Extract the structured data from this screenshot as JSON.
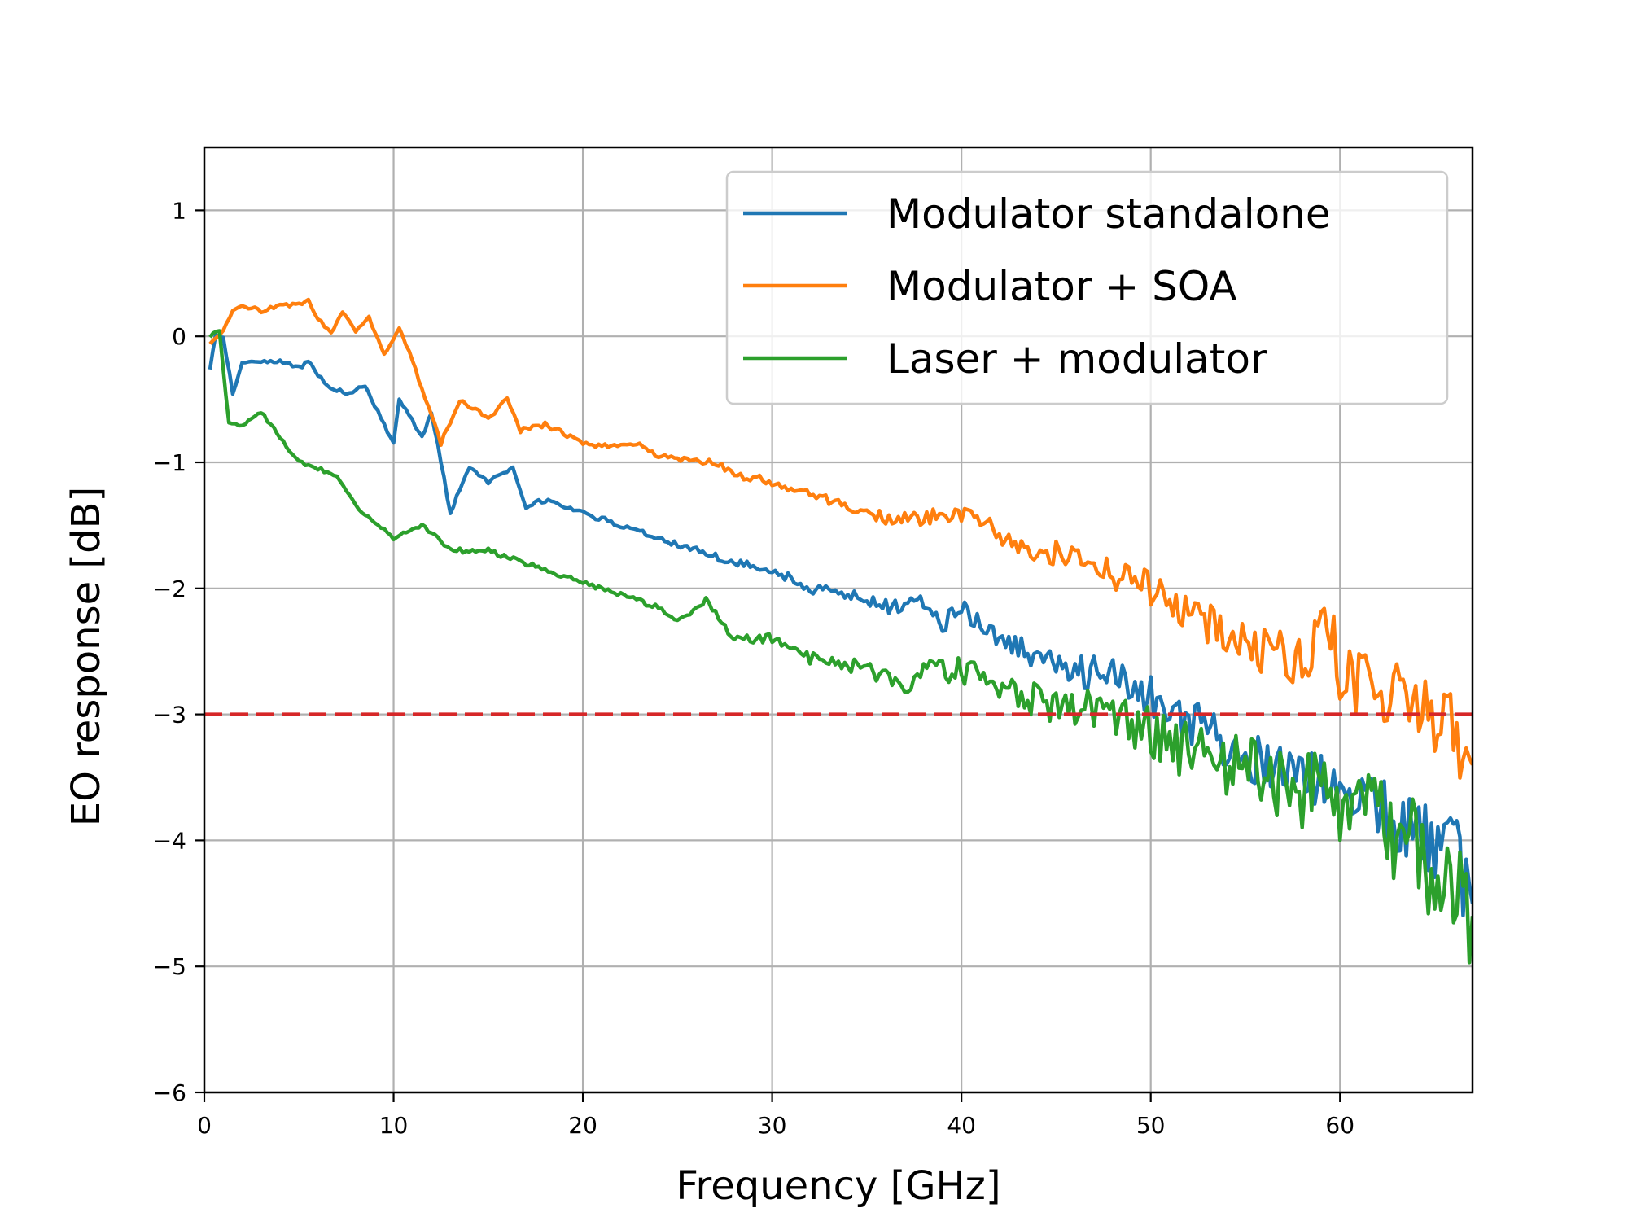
{
  "chart_data": {
    "type": "line",
    "title": "",
    "xlabel": "Frequency [GHz]",
    "ylabel": "EO response [dB]",
    "xlim": [
      0,
      67
    ],
    "ylim": [
      -6,
      1.5
    ],
    "xticks": [
      0,
      10,
      20,
      30,
      40,
      50,
      60
    ],
    "xtick_labels": [
      "0",
      "10",
      "20",
      "30",
      "40",
      "50",
      "60"
    ],
    "yticks": [
      1,
      0,
      -1,
      -2,
      -3,
      -4,
      -5,
      -6
    ],
    "ytick_labels": [
      "1",
      "0",
      "−1",
      "−2",
      "−3",
      "−4",
      "−5",
      "−6"
    ],
    "grid": true,
    "legend_position": "top-right",
    "series": [
      {
        "name": "Modulator standalone",
        "color": "#1f77b4",
        "x": [
          0.3,
          0.6,
          1,
          1.5,
          2,
          3,
          4,
          5,
          5.5,
          6.5,
          7.5,
          8.5,
          9,
          10,
          10.3,
          11.5,
          12,
          13,
          14,
          15,
          16.3,
          17,
          18,
          20,
          22,
          24,
          26,
          28,
          30,
          32,
          34,
          36,
          38,
          39,
          40,
          42,
          44,
          46,
          48,
          50,
          52,
          54,
          56,
          58,
          60,
          62,
          64,
          66,
          67
        ],
        "y": [
          -0.25,
          0.0,
          0.0,
          -0.45,
          -0.2,
          -0.2,
          -0.2,
          -0.25,
          -0.2,
          -0.4,
          -0.45,
          -0.4,
          -0.55,
          -0.85,
          -0.5,
          -0.8,
          -0.6,
          -1.4,
          -1.05,
          -1.15,
          -1.05,
          -1.35,
          -1.3,
          -1.4,
          -1.5,
          -1.6,
          -1.7,
          -1.8,
          -1.85,
          -2.0,
          -2.05,
          -2.15,
          -2.1,
          -2.3,
          -2.15,
          -2.4,
          -2.55,
          -2.65,
          -2.7,
          -2.85,
          -3.05,
          -3.25,
          -3.4,
          -3.55,
          -3.6,
          -3.7,
          -3.9,
          -4.05,
          -4.5
        ]
      },
      {
        "name": "Modulator + SOA",
        "color": "#ff7f0e",
        "x": [
          0.3,
          1,
          1.5,
          2,
          3,
          4,
          5,
          5.5,
          6,
          6.7,
          7.3,
          8,
          8.7,
          9.5,
          10.3,
          11,
          12.5,
          13.5,
          14.5,
          15,
          16,
          16.7,
          18,
          20,
          22,
          23,
          24,
          26,
          27,
          28,
          30,
          32,
          34,
          36,
          38,
          40,
          41,
          42,
          44,
          46,
          48,
          50,
          52,
          54,
          56,
          58,
          59.5,
          60,
          62,
          64,
          66,
          67
        ],
        "y": [
          -0.05,
          0.05,
          0.2,
          0.25,
          0.2,
          0.25,
          0.25,
          0.28,
          0.15,
          0.02,
          0.2,
          0.05,
          0.15,
          -0.15,
          0.07,
          -0.2,
          -0.85,
          -0.5,
          -0.6,
          -0.65,
          -0.5,
          -0.75,
          -0.7,
          -0.85,
          -0.88,
          -0.85,
          -0.95,
          -1.0,
          -1.0,
          -1.1,
          -1.15,
          -1.25,
          -1.35,
          -1.45,
          -1.45,
          -1.4,
          -1.45,
          -1.6,
          -1.7,
          -1.75,
          -1.9,
          -2.0,
          -2.2,
          -2.35,
          -2.5,
          -2.6,
          -2.3,
          -2.7,
          -2.8,
          -2.9,
          -3.1,
          -3.4
        ]
      },
      {
        "name": "Laser + modulator",
        "color": "#2ca02c",
        "x": [
          0.3,
          0.8,
          1.3,
          2,
          3,
          4,
          5,
          7,
          8,
          10,
          11.5,
          13,
          15,
          18,
          20,
          22,
          24,
          25,
          26.5,
          28,
          30,
          32,
          34,
          36,
          37,
          38,
          40,
          42,
          44,
          46,
          48,
          50,
          52,
          54,
          56,
          58,
          60,
          62,
          64,
          65.5,
          67
        ],
        "y": [
          0.0,
          0.05,
          -0.7,
          -0.7,
          -0.6,
          -0.8,
          -1.0,
          -1.1,
          -1.35,
          -1.6,
          -1.5,
          -1.7,
          -1.7,
          -1.85,
          -1.95,
          -2.05,
          -2.15,
          -2.25,
          -2.1,
          -2.4,
          -2.4,
          -2.55,
          -2.6,
          -2.7,
          -2.8,
          -2.65,
          -2.65,
          -2.75,
          -2.9,
          -2.95,
          -3.0,
          -3.15,
          -3.3,
          -3.4,
          -3.5,
          -3.6,
          -3.7,
          -3.9,
          -4.1,
          -4.3,
          -4.6
        ]
      }
    ],
    "reference_line": {
      "y": -3,
      "color": "#d62728",
      "style": "dashed"
    }
  }
}
